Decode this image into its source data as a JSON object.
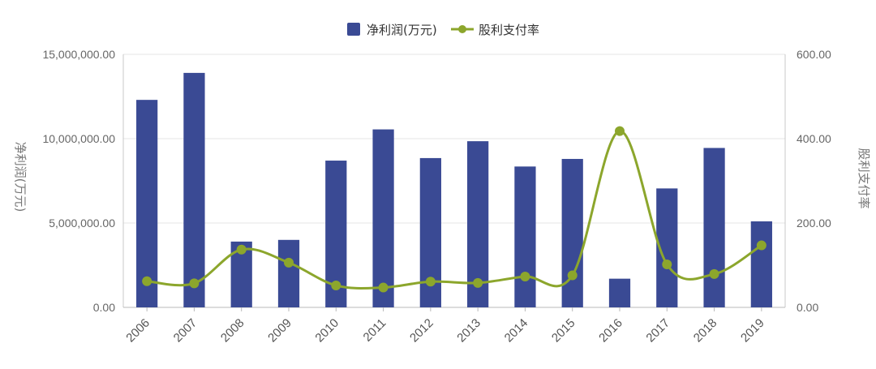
{
  "chart_data": {
    "type": "bar",
    "categories": [
      "2006",
      "2007",
      "2008",
      "2009",
      "2010",
      "2011",
      "2012",
      "2013",
      "2014",
      "2015",
      "2016",
      "2017",
      "2018",
      "2019"
    ],
    "series": [
      {
        "name": "净利润(万元)",
        "type": "bar",
        "axis": "left",
        "color": "#3a4a94",
        "values": [
          12300000,
          13900000,
          3900000,
          4000000,
          8700000,
          10550000,
          8850000,
          9850000,
          8350000,
          8800000,
          1700000,
          7050000,
          9450000,
          5100000
        ]
      },
      {
        "name": "股利支付率",
        "type": "line",
        "axis": "right",
        "color": "#8ca62c",
        "values": [
          62,
          57,
          137,
          106,
          52,
          47,
          61,
          58,
          73,
          76,
          418,
          102,
          79,
          147
        ]
      }
    ],
    "y_left": {
      "label": "净利润(万元)",
      "ylim": [
        0,
        15000000
      ],
      "ticks": [
        "0.00",
        "5,000,000.00",
        "10,000,000.00",
        "15,000,000.00"
      ]
    },
    "y_right": {
      "label": "股利支付率",
      "ylim": [
        0,
        600
      ],
      "ticks": [
        "0.00",
        "200.00",
        "400.00",
        "600.00"
      ]
    },
    "legend_position": "top-center",
    "grid": true
  },
  "legend": {
    "bar_label": "净利润(万元)",
    "line_label": "股利支付率"
  }
}
